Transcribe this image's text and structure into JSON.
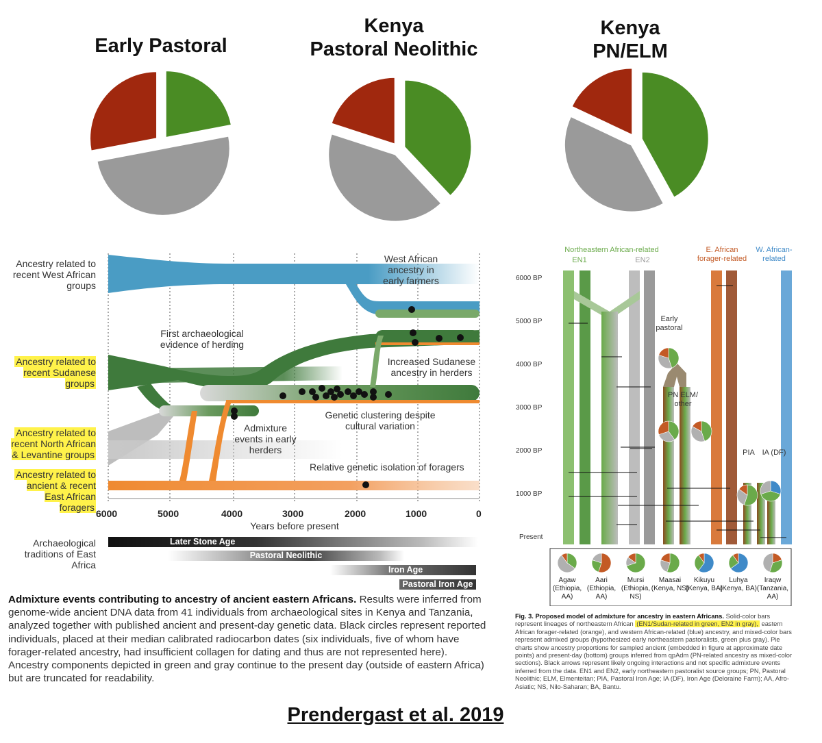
{
  "pies": {
    "colors": {
      "sudan": "#4a8c24",
      "levant": "#9a9a9a",
      "forager": "#a0280e"
    },
    "items": [
      {
        "title": "Early Pastoral",
        "proportions": {
          "sudan": 0.22,
          "levant": 0.5,
          "forager": 0.28
        }
      },
      {
        "title_line1": "Kenya",
        "title_line2": "Pastoral Neolithic",
        "proportions": {
          "sudan": 0.38,
          "levant": 0.42,
          "forager": 0.2
        }
      },
      {
        "title_line1": "Kenya",
        "title_line2": "PN/ELM",
        "proportions": {
          "sudan": 0.42,
          "levant": 0.4,
          "forager": 0.18
        }
      }
    ]
  },
  "left_diagram": {
    "stream_labels": {
      "west_african": "Ancestry related to recent West African groups",
      "sudanese": "Ancestry related to recent Sudanese groups",
      "north_african": "Ancestry related to recent North African & Levantine groups",
      "foragers": "Ancestry related to ancient & recent East African foragers"
    },
    "annotations": {
      "west_farmers": "West African ancestry in early farmers",
      "herding": "First archaeological evidence of herding",
      "sudanese_increase": "Increased Sudanese ancestry in herders",
      "clustering": "Genetic clustering despite cultural variation",
      "admixture": "Admixture events in early herders",
      "isolation": "Relative genetic isolation of foragers"
    },
    "x_axis": {
      "label": "Years before present",
      "ticks": [
        "6000",
        "5000",
        "4000",
        "3000",
        "2000",
        "1000",
        "0"
      ]
    },
    "traditions": {
      "label": "Archaeological traditions of East Africa",
      "items": [
        "Later Stone Age",
        "Pastoral Neolithic",
        "Iron Age",
        "Pastoral Iron Age"
      ]
    }
  },
  "caption": {
    "title": "Admixture events contributing to ancestry of ancient eastern Africans.",
    "body": "Results were inferred from genome-wide ancient DNA data from 41 individuals from archaeological sites in Kenya and Tanzania, analyzed together with published ancient and present-day genetic data. Black circles represent reported individuals, placed at their median calibrated radiocarbon dates (six individuals, five of whom have forager-related ancestry, had insufficient collagen for dating and thus are not represented here). Ancestry components depicted in green and gray continue to the present day (outside of eastern Africa) but are truncated for readability."
  },
  "right_diagram": {
    "headers": {
      "ne_african": "Northeastern African-related",
      "en1": "EN1",
      "en2": "EN2",
      "e_african": "E. African forager-related",
      "w_african": "W. African-related"
    },
    "y_ticks": [
      "6000 BP",
      "5000 BP",
      "4000 BP",
      "3000 BP",
      "2000 BP",
      "1000 BP",
      "Present"
    ],
    "labels": {
      "early": "Early pastoral",
      "pn": "PN ELM/ other",
      "pia": "PIA",
      "ia": "IA (DF)"
    },
    "populations": [
      {
        "name": "Agaw",
        "sub": "(Ethiopia, AA)"
      },
      {
        "name": "Aari",
        "sub": "(Ethiopia, AA)"
      },
      {
        "name": "Mursi",
        "sub": "(Ethiopia, NS)"
      },
      {
        "name": "Maasai",
        "sub": "(Kenya, NS)"
      },
      {
        "name": "Kikuyu",
        "sub": "(Kenya, BA)"
      },
      {
        "name": "Luhya",
        "sub": "(Kenya, BA)"
      },
      {
        "name": "Iraqw",
        "sub": "(Tanzania, AA)"
      }
    ],
    "caption_title": "Fig. 3. Proposed model of admixture for ancestry in eastern Africans.",
    "caption_body_1": "Solid-color bars represent lineages of northeastern African",
    "caption_highlight": "(EN1/Sudan-related in green, EN2 in gray),",
    "caption_body_2": "eastern African forager-related (orange), and western African-related (blue) ancestry, and mixed-color bars represent admixed groups (hypothesized early northeastern pastoralists, green plus gray). Pie charts show ancestry proportions for sampled ancient (embedded in figure at approximate date points) and present-day (bottom) groups inferred from qpAdm (PN-related ancestry as mixed-color sections). Black arrows represent likely ongoing interactions and not specific admixture events inferred from the data. EN1 and EN2, early northeastern pastoralist source groups; PN, Pastoral Neolithic; ELM, Elmenteitan; PIA, Pastoral Iron Age; IA (DF), Iron Age (Deloraine Farm); AA, Afro-Asiatic; NS, Nilo-Saharan; BA, Bantu."
  },
  "citation": "Prendergast et al. 2019"
}
